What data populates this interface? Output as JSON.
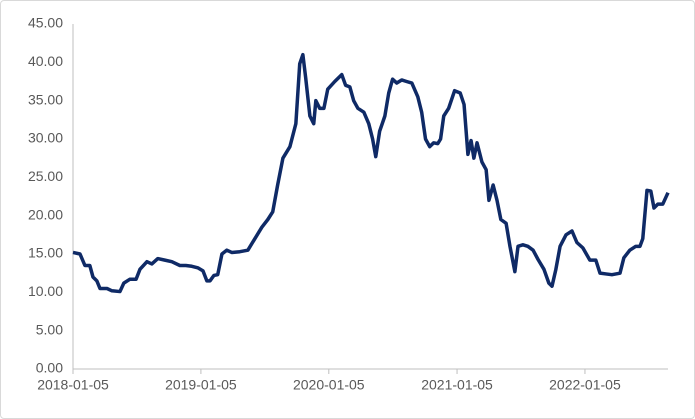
{
  "chart_data": {
    "type": "line",
    "x": [
      "2018-01-05",
      "2018-01-25",
      "2018-02-08",
      "2018-02-22",
      "2018-03-03",
      "2018-03-14",
      "2018-03-23",
      "2018-04-12",
      "2018-04-26",
      "2018-05-19",
      "2018-05-30",
      "2018-06-16",
      "2018-07-04",
      "2018-07-15",
      "2018-08-04",
      "2018-08-18",
      "2018-09-04",
      "2018-09-24",
      "2018-10-14",
      "2018-11-06",
      "2018-11-23",
      "2018-12-10",
      "2018-12-27",
      "2019-01-11",
      "2019-01-22",
      "2019-01-31",
      "2019-02-11",
      "2019-02-22",
      "2019-03-06",
      "2019-03-20",
      "2019-04-03",
      "2019-04-26",
      "2019-05-19",
      "2019-06-08",
      "2019-06-28",
      "2019-07-15",
      "2019-07-29",
      "2019-08-12",
      "2019-08-27",
      "2019-09-16",
      "2019-10-03",
      "2019-10-14",
      "2019-10-23",
      "2019-10-31",
      "2019-11-12",
      "2019-11-23",
      "2019-11-29",
      "2019-12-10",
      "2019-12-22",
      "2020-01-02",
      "2020-01-22",
      "2020-02-11",
      "2020-02-22",
      "2020-03-05",
      "2020-03-16",
      "2020-03-28",
      "2020-04-14",
      "2020-04-28",
      "2020-05-09",
      "2020-05-18",
      "2020-05-29",
      "2020-06-13",
      "2020-06-24",
      "2020-07-05",
      "2020-07-17",
      "2020-07-31",
      "2020-08-14",
      "2020-08-29",
      "2020-09-15",
      "2020-09-26",
      "2020-10-07",
      "2020-10-19",
      "2020-10-30",
      "2020-11-11",
      "2020-11-19",
      "2020-11-28",
      "2020-12-12",
      "2020-12-29",
      "2021-01-14",
      "2021-01-25",
      "2021-02-05",
      "2021-02-14",
      "2021-02-22",
      "2021-03-03",
      "2021-03-17",
      "2021-03-29",
      "2021-04-06",
      "2021-04-18",
      "2021-04-29",
      "2021-05-10",
      "2021-05-25",
      "2021-06-05",
      "2021-06-19",
      "2021-06-28",
      "2021-07-12",
      "2021-07-26",
      "2021-08-10",
      "2021-08-24",
      "2021-09-10",
      "2021-09-24",
      "2021-10-03",
      "2021-10-14",
      "2021-10-26",
      "2021-11-12",
      "2021-11-29",
      "2021-12-13",
      "2021-12-30",
      "2022-01-19",
      "2022-02-05",
      "2022-02-17",
      "2022-03-06",
      "2022-03-23",
      "2022-04-15",
      "2022-04-26",
      "2022-05-13",
      "2022-05-30",
      "2022-06-11",
      "2022-06-19",
      "2022-07-01",
      "2022-07-12",
      "2022-07-21",
      "2022-08-01",
      "2022-08-15",
      "2022-08-30"
    ],
    "series": [
      {
        "color": "#0f2a66",
        "values": [
          15.2,
          15.0,
          13.5,
          13.5,
          12.0,
          11.5,
          10.5,
          10.5,
          10.2,
          10.1,
          11.2,
          11.7,
          11.7,
          13.0,
          14.0,
          13.7,
          14.4,
          14.2,
          14.0,
          13.5,
          13.5,
          13.4,
          13.2,
          12.8,
          11.5,
          11.5,
          12.2,
          12.3,
          15.0,
          15.5,
          15.2,
          15.3,
          15.5,
          17.0,
          18.5,
          19.5,
          20.5,
          24.0,
          27.5,
          29.0,
          32.0,
          39.8,
          41.0,
          38.0,
          33.0,
          32.0,
          35.0,
          34.0,
          34.0,
          36.5,
          37.5,
          38.4,
          37.0,
          36.8,
          35.0,
          34.0,
          33.5,
          32.0,
          30.0,
          27.7,
          31.0,
          33.0,
          36.0,
          37.8,
          37.3,
          37.7,
          37.5,
          37.3,
          35.5,
          33.5,
          30.0,
          29.0,
          29.5,
          29.4,
          30.0,
          33.0,
          34.0,
          36.3,
          36.0,
          34.5,
          28.0,
          29.8,
          27.5,
          29.5,
          27.0,
          26.0,
          22.0,
          24.0,
          22.0,
          19.5,
          19.0,
          16.0,
          12.7,
          16.0,
          16.2,
          16.0,
          15.5,
          14.3,
          13.0,
          11.2,
          10.8,
          13.0,
          16.0,
          17.5,
          18.0,
          16.5,
          15.8,
          14.2,
          14.2,
          12.5,
          12.4,
          12.3,
          12.5,
          14.5,
          15.5,
          16.0,
          16.0,
          17.0,
          23.3,
          23.2,
          21.0,
          21.5,
          21.5,
          23.0
        ]
      }
    ],
    "xlim": [
      "2018-01-05",
      "2022-08-30"
    ],
    "xticks": [
      "2018-01-05",
      "2019-01-05",
      "2020-01-05",
      "2021-01-05",
      "2022-01-05"
    ],
    "ylim": [
      0,
      45
    ],
    "yticks": [
      {
        "value": 0,
        "label": "0.00"
      },
      {
        "value": 5,
        "label": "5.00"
      },
      {
        "value": 10,
        "label": "10.00"
      },
      {
        "value": 15,
        "label": "15.00"
      },
      {
        "value": 20,
        "label": "20.00"
      },
      {
        "value": 25,
        "label": "25.00"
      },
      {
        "value": 30,
        "label": "30.00"
      },
      {
        "value": 35,
        "label": "35.00"
      },
      {
        "value": 40,
        "label": "40.00"
      },
      {
        "value": 45,
        "label": "45.00"
      }
    ],
    "grid": false
  }
}
